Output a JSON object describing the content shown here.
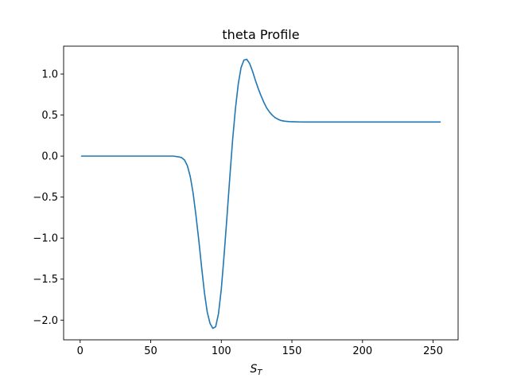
{
  "chart_data": {
    "type": "line",
    "title": "theta Profile",
    "xlabel": {
      "base": "S",
      "subscript": "T"
    },
    "ylabel": "",
    "xlim": [
      -11.7,
      267.7
    ],
    "ylim": [
      -2.24,
      1.34
    ],
    "x_ticks": [
      0,
      50,
      100,
      150,
      200,
      250
    ],
    "y_ticks": [
      1.0,
      0.5,
      0.0,
      -0.5,
      -1.0,
      -1.5,
      -2.0
    ],
    "x_tick_labels": [
      "0",
      "50",
      "100",
      "150",
      "200",
      "250"
    ],
    "y_tick_labels": [
      "1.0",
      "0.5",
      "0.0",
      "−0.5",
      "−1.0",
      "−1.5",
      "−2.0"
    ],
    "grid": false,
    "legend": "none",
    "series": [
      {
        "color": "#1f77b4",
        "x": [
          1,
          10,
          20,
          30,
          40,
          50,
          60,
          66,
          70,
          72,
          74,
          76,
          78,
          80,
          82,
          84,
          86,
          88,
          90,
          92,
          94,
          96,
          98,
          100,
          102,
          104,
          106,
          108,
          110,
          112,
          114,
          116,
          118,
          120,
          122,
          124,
          126,
          128,
          130,
          132,
          134,
          136,
          138,
          140,
          142,
          145,
          148,
          152,
          156,
          160,
          170,
          180,
          200,
          220,
          240,
          255
        ],
        "y": [
          0.0,
          0.0,
          0.0,
          0.0,
          0.0,
          0.0,
          0.0,
          0.0,
          -0.01,
          -0.02,
          -0.05,
          -0.12,
          -0.25,
          -0.45,
          -0.72,
          -1.02,
          -1.35,
          -1.66,
          -1.9,
          -2.04,
          -2.1,
          -2.08,
          -1.92,
          -1.62,
          -1.2,
          -0.74,
          -0.26,
          0.2,
          0.58,
          0.88,
          1.08,
          1.17,
          1.18,
          1.13,
          1.04,
          0.93,
          0.83,
          0.74,
          0.66,
          0.59,
          0.54,
          0.5,
          0.47,
          0.45,
          0.435,
          0.425,
          0.42,
          0.418,
          0.416,
          0.415,
          0.415,
          0.415,
          0.415,
          0.415,
          0.415,
          0.415
        ]
      }
    ]
  }
}
